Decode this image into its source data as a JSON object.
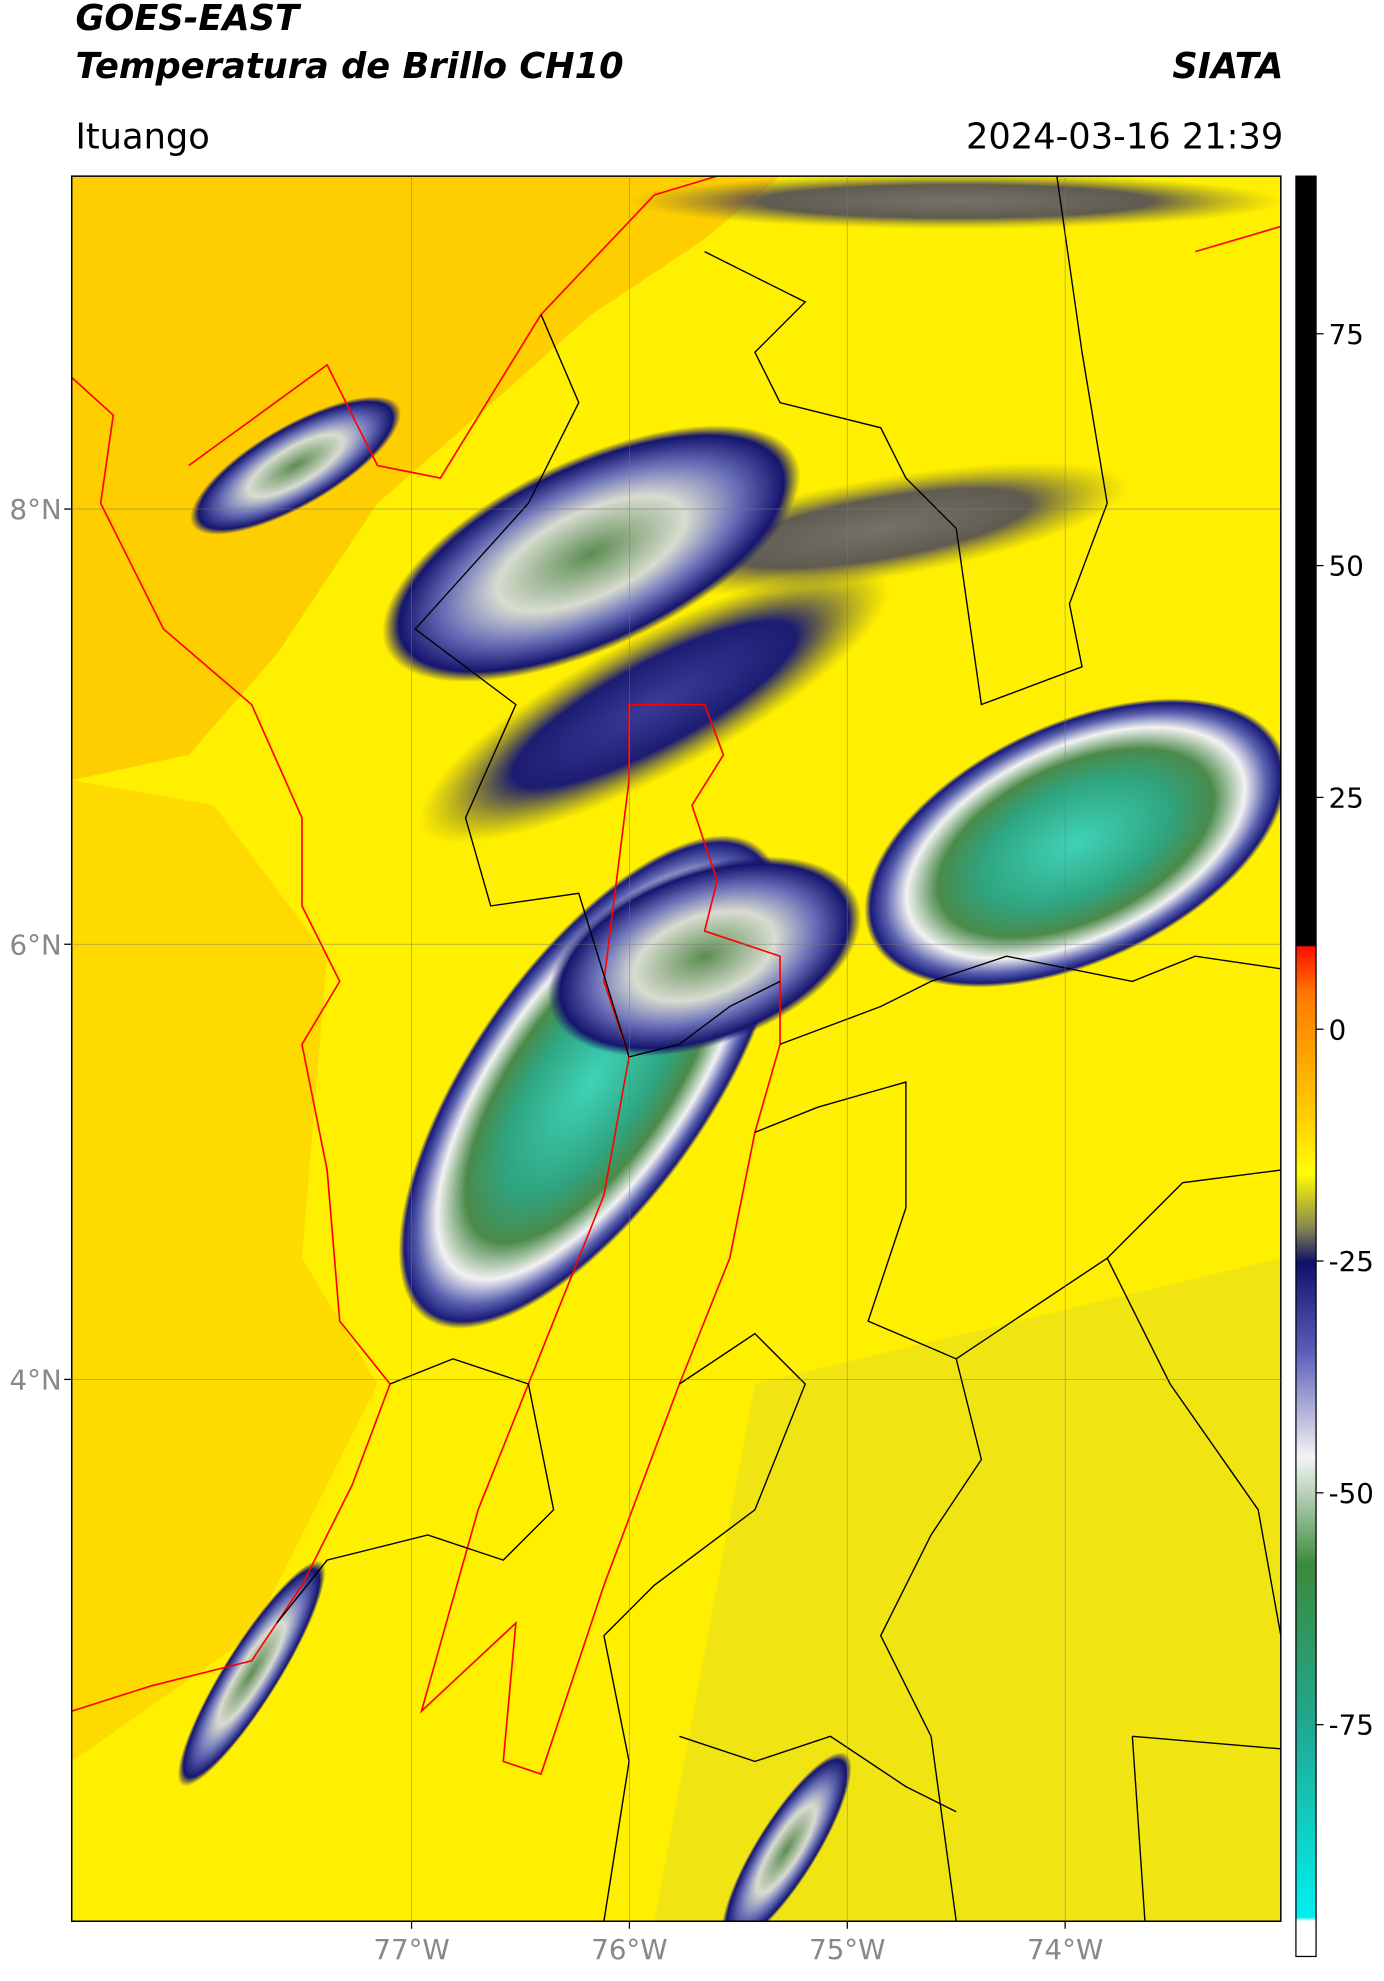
{
  "header": {
    "title": "GOES-EAST",
    "subtitle": "Temperatura de Brillo CH10",
    "source": "SIATA",
    "location": "Ituango",
    "datetime": "2024-03-16 21:39"
  },
  "map": {
    "xlim": [
      -78.56,
      -73.01
    ],
    "ylim": [
      1.51,
      9.53
    ],
    "xticks": [
      {
        "value": -77,
        "label": "77°W"
      },
      {
        "value": -76,
        "label": "76°W"
      },
      {
        "value": -75,
        "label": "75°W"
      },
      {
        "value": -74,
        "label": "74°W"
      }
    ],
    "yticks": [
      {
        "value": 8,
        "label": "8°N"
      },
      {
        "value": 6,
        "label": "6°N"
      },
      {
        "value": 4,
        "label": "4°N"
      }
    ],
    "grid": true
  },
  "colorbar": {
    "lim": [
      -100,
      92
    ],
    "ticks": [
      75,
      50,
      25,
      0,
      -25,
      -50,
      -75
    ]
  }
}
